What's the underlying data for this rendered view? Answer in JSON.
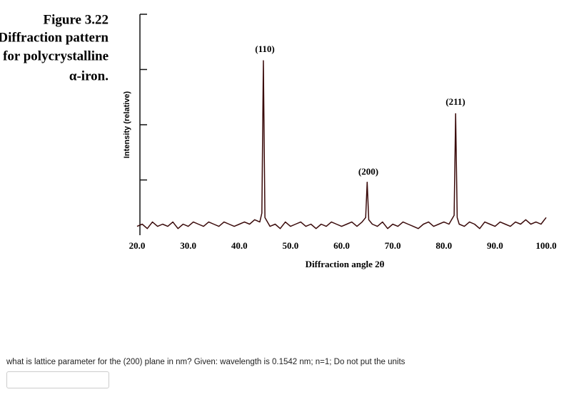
{
  "chart_data": {
    "type": "line",
    "caption": [
      "Figure 3.22",
      "Diffraction pattern",
      "for polycrystalline",
      "α-iron."
    ],
    "x_label": "Diffraction angle 2θ",
    "y_label": "Intensity (relative)",
    "annotations": [
      "(110)",
      "(200)",
      "(211)"
    ],
    "x": [
      20,
      21,
      22,
      23,
      24,
      25,
      26,
      27,
      28,
      29,
      30,
      31,
      32,
      33,
      34,
      35,
      36,
      37,
      38,
      39,
      40,
      41,
      42,
      43,
      44,
      44.4,
      44.7,
      45.0,
      46,
      47,
      48,
      49,
      50,
      51,
      52,
      53,
      54,
      55,
      56,
      57,
      58,
      59,
      60,
      61,
      62,
      63,
      64,
      64.7,
      65.0,
      65.3,
      66,
      67,
      68,
      69,
      70,
      71,
      72,
      73,
      74,
      75,
      76,
      77,
      78,
      79,
      80,
      81,
      82.0,
      82.3,
      82.6,
      83,
      84,
      85,
      86,
      87,
      88,
      89,
      90,
      91,
      92,
      93,
      94,
      95,
      96,
      97,
      98,
      99,
      100
    ],
    "series": [
      {
        "name": "Intensity",
        "color": "#3a0a0a",
        "values": [
          4,
          5,
          3,
          6,
          4,
          5,
          4,
          6,
          3,
          5,
          4,
          6,
          5,
          4,
          6,
          5,
          4,
          6,
          5,
          4,
          5,
          6,
          5,
          7,
          6,
          10,
          79,
          8,
          4,
          5,
          3,
          6,
          4,
          5,
          6,
          4,
          5,
          3,
          5,
          4,
          6,
          5,
          4,
          5,
          6,
          4,
          6,
          8,
          24,
          7,
          5,
          4,
          6,
          3,
          5,
          4,
          6,
          5,
          4,
          3,
          5,
          6,
          4,
          5,
          6,
          5,
          9,
          55,
          8,
          5,
          4,
          6,
          5,
          3,
          6,
          5,
          4,
          6,
          5,
          4,
          6,
          5,
          7,
          5,
          6,
          5,
          8
        ]
      }
    ],
    "xlim": [
      20,
      100
    ],
    "xticks": [
      {
        "value": 20,
        "label": "20.0"
      },
      {
        "value": 30,
        "label": "30.0"
      },
      {
        "value": 40,
        "label": "40.0"
      },
      {
        "value": 50,
        "label": "50.0"
      },
      {
        "value": 60,
        "label": "60.0"
      },
      {
        "value": 70,
        "label": "70.0"
      },
      {
        "value": 80,
        "label": "80.0"
      },
      {
        "value": 90,
        "label": "90.0"
      },
      {
        "value": 100,
        "label": "100.0"
      }
    ],
    "ylim": [
      0,
      100
    ],
    "yticks": [
      25,
      50,
      75,
      100
    ]
  },
  "question": {
    "text": "what is lattice parameter for the (200) plane in nm? Given: wavelength is 0.1542 nm; n=1; Do not put the units"
  }
}
